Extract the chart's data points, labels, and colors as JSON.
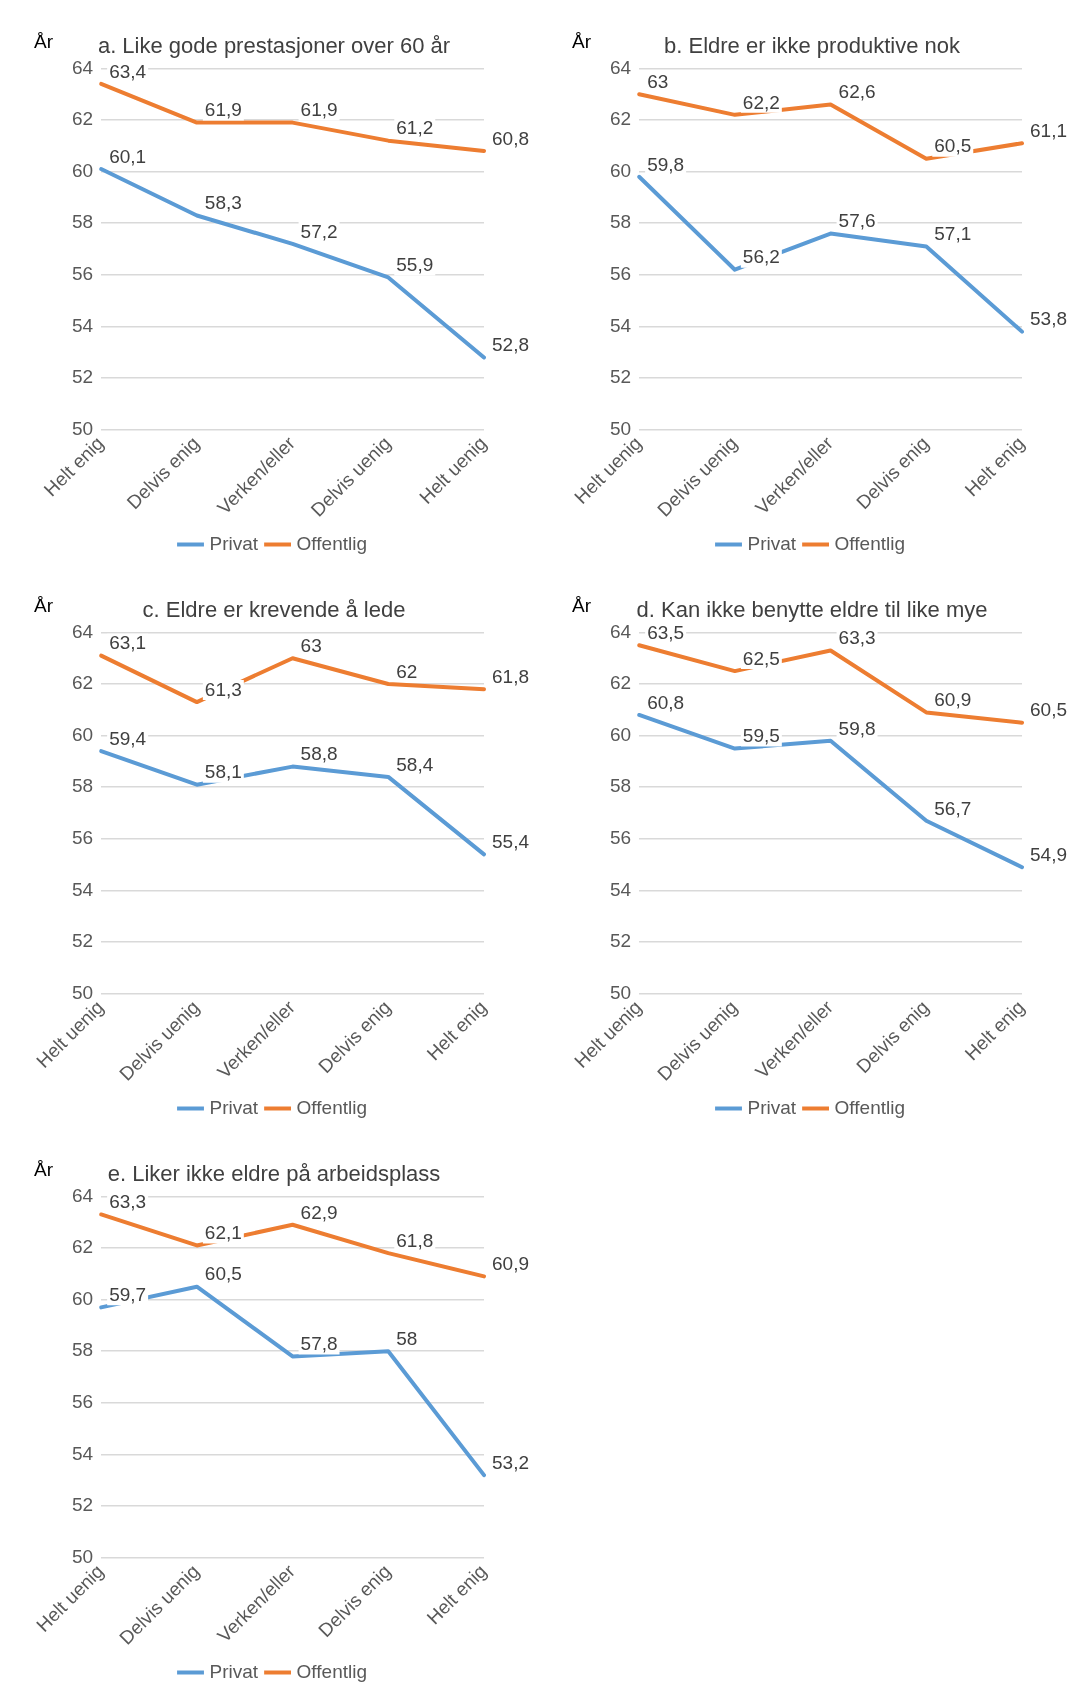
{
  "chart_data": [
    {
      "type": "line",
      "title": "a. Like gode prestasjoner over 60 år",
      "ylabel": "År",
      "categories": [
        "Helt enig",
        "Delvis enig",
        "Verken/eller",
        "Delvis uenig",
        "Helt uenig"
      ],
      "series": [
        {
          "name": "Privat",
          "color": "#5b9bd5",
          "values": [
            60.1,
            58.3,
            57.2,
            55.9,
            52.8
          ],
          "value_labels": [
            "60,1",
            "58,3",
            "57,2",
            "55,9",
            "52,8"
          ]
        },
        {
          "name": "Offentlig",
          "color": "#ed7d31",
          "values": [
            63.4,
            61.9,
            61.9,
            61.2,
            60.8
          ],
          "value_labels": [
            "63,4",
            "61,9",
            "61,9",
            "61,2",
            "60,8"
          ]
        }
      ],
      "ylim": [
        50,
        64
      ],
      "yticks": [
        50,
        52,
        54,
        56,
        58,
        60,
        62,
        64
      ],
      "grid": "y",
      "legend": "bottom",
      "marker": "none",
      "line_style": "solid"
    },
    {
      "type": "line",
      "title": "b. Eldre er ikke produktive nok",
      "ylabel": "År",
      "categories": [
        "Helt uenig",
        "Delvis uenig",
        "Verken/eller",
        "Delvis enig",
        "Helt enig"
      ],
      "series": [
        {
          "name": "Privat",
          "color": "#5b9bd5",
          "values": [
            59.8,
            56.2,
            57.6,
            57.1,
            53.8
          ],
          "value_labels": [
            "59,8",
            "56,2",
            "57,6",
            "57,1",
            "53,8"
          ]
        },
        {
          "name": "Offentlig",
          "color": "#ed7d31",
          "values": [
            63,
            62.2,
            62.6,
            60.5,
            61.1
          ],
          "value_labels": [
            "63",
            "62,2",
            "62,6",
            "60,5",
            "61,1"
          ]
        }
      ],
      "ylim": [
        50,
        64
      ],
      "yticks": [
        50,
        52,
        54,
        56,
        58,
        60,
        62,
        64
      ],
      "grid": "y",
      "legend": "bottom",
      "marker": "none",
      "line_style": "solid"
    },
    {
      "type": "line",
      "title": "c. Eldre er krevende å lede",
      "ylabel": "År",
      "categories": [
        "Helt uenig",
        "Delvis uenig",
        "Verken/eller",
        "Delvis enig",
        "Helt enig"
      ],
      "series": [
        {
          "name": "Privat",
          "color": "#5b9bd5",
          "values": [
            59.4,
            58.1,
            58.8,
            58.4,
            55.4
          ],
          "value_labels": [
            "59,4",
            "58,1",
            "58,8",
            "58,4",
            "55,4"
          ]
        },
        {
          "name": "Offentlig",
          "color": "#ed7d31",
          "values": [
            63.1,
            61.3,
            63,
            62,
            61.8
          ],
          "value_labels": [
            "63,1",
            "61,3",
            "63",
            "62",
            "61,8"
          ]
        }
      ],
      "ylim": [
        50,
        64
      ],
      "yticks": [
        50,
        52,
        54,
        56,
        58,
        60,
        62,
        64
      ],
      "grid": "y",
      "legend": "bottom",
      "marker": "none",
      "line_style": "solid"
    },
    {
      "type": "line",
      "title": "d. Kan ikke benytte eldre til like mye",
      "ylabel": "År",
      "categories": [
        "Helt uenig",
        "Delvis uenig",
        "Verken/eller",
        "Delvis enig",
        "Helt enig"
      ],
      "series": [
        {
          "name": "Privat",
          "color": "#5b9bd5",
          "values": [
            60.8,
            59.5,
            59.8,
            56.7,
            54.9
          ],
          "value_labels": [
            "60,8",
            "59,5",
            "59,8",
            "56,7",
            "54,9"
          ]
        },
        {
          "name": "Offentlig",
          "color": "#ed7d31",
          "values": [
            63.5,
            62.5,
            63.3,
            60.9,
            60.5
          ],
          "value_labels": [
            "63,5",
            "62,5",
            "63,3",
            "60,9",
            "60,5"
          ]
        }
      ],
      "ylim": [
        50,
        64
      ],
      "yticks": [
        50,
        52,
        54,
        56,
        58,
        60,
        62,
        64
      ],
      "grid": "y",
      "legend": "bottom",
      "marker": "none",
      "line_style": "solid"
    },
    {
      "type": "line",
      "title": "e. Liker ikke eldre på arbeidsplass",
      "ylabel": "År",
      "categories": [
        "Helt uenig",
        "Delvis uenig",
        "Verken/eller",
        "Delvis enig",
        "Helt enig"
      ],
      "series": [
        {
          "name": "Privat",
          "color": "#5b9bd5",
          "values": [
            59.7,
            60.5,
            57.8,
            58,
            53.2
          ],
          "value_labels": [
            "59,7",
            "60,5",
            "57,8",
            "58",
            "53,2"
          ]
        },
        {
          "name": "Offentlig",
          "color": "#ed7d31",
          "values": [
            63.3,
            62.1,
            62.9,
            61.8,
            60.9
          ],
          "value_labels": [
            "63,3",
            "62,1",
            "62,9",
            "61,8",
            "60,9"
          ]
        }
      ],
      "ylim": [
        50,
        64
      ],
      "yticks": [
        50,
        52,
        54,
        56,
        58,
        60,
        62,
        64
      ],
      "grid": "y",
      "legend": "bottom",
      "marker": "none",
      "line_style": "solid"
    }
  ]
}
